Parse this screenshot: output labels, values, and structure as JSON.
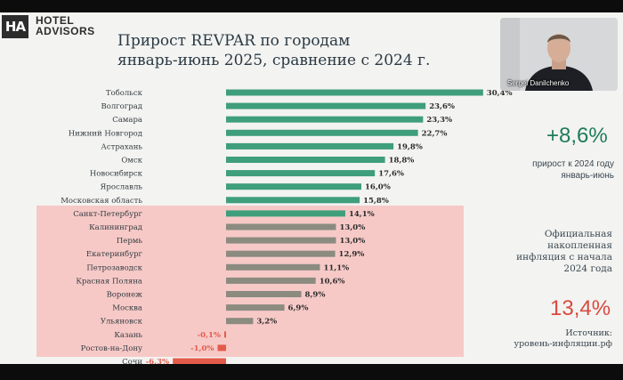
{
  "logo": {
    "mark": "HA",
    "line1": "HOTEL",
    "line2": "ADVISORS"
  },
  "title": {
    "line1": "Прирост REVPAR по городам",
    "line2": "январь-июнь 2025, сравнение с 2024 г."
  },
  "video": {
    "participant_name": "Sergei Danilchenko"
  },
  "side_panel": {
    "growth_value": "+8,6%",
    "growth_caption_line1": "прирост к 2024 году",
    "growth_caption_line2": "январь-июнь",
    "inflation_line1": "Официальная",
    "inflation_line2": "накопленная",
    "inflation_line3": "инфляция с начала",
    "inflation_line4": "2024 года",
    "inflation_value": "13,4%",
    "source_line1": "Источник:",
    "source_line2": "уровень-инфляции.рф"
  },
  "colors": {
    "above": "#3f9e7c",
    "below": "#8b8b80",
    "negative": "#e45b4b",
    "band": "#f6c9c7"
  },
  "chart_data": {
    "type": "bar",
    "orientation": "horizontal",
    "unit": "%",
    "categories": [
      "Тобольск",
      "Волгоград",
      "Самара",
      "Нижний Новгород",
      "Астрахань",
      "Омск",
      "Новосибирск",
      "Ярославль",
      "Московская область",
      "Санкт-Петербург",
      "Калининград",
      "Пермь",
      "Екатеринбург",
      "Петрозаводск",
      "Красная Поляна",
      "Воронеж",
      "Москва",
      "Ульяновск",
      "Казань",
      "Ростов-на-Дону",
      "Сочи"
    ],
    "values": [
      30.4,
      23.6,
      23.3,
      22.7,
      19.8,
      18.8,
      17.6,
      16.0,
      15.8,
      14.1,
      13.0,
      13.0,
      12.9,
      11.1,
      10.6,
      8.9,
      6.9,
      3.2,
      -0.1,
      -1.0,
      -6.3
    ],
    "labels": [
      "30,4%",
      "23,6%",
      "23,3%",
      "22,7%",
      "19,8%",
      "18,8%",
      "17,6%",
      "16,0%",
      "15,8%",
      "14,1%",
      "13,0%",
      "13,0%",
      "12,9%",
      "11,1%",
      "10,6%",
      "8,9%",
      "6,9%",
      "3,2%",
      "-0,1%",
      "-1,0%",
      "-6,3%"
    ],
    "threshold": 13.4
  }
}
